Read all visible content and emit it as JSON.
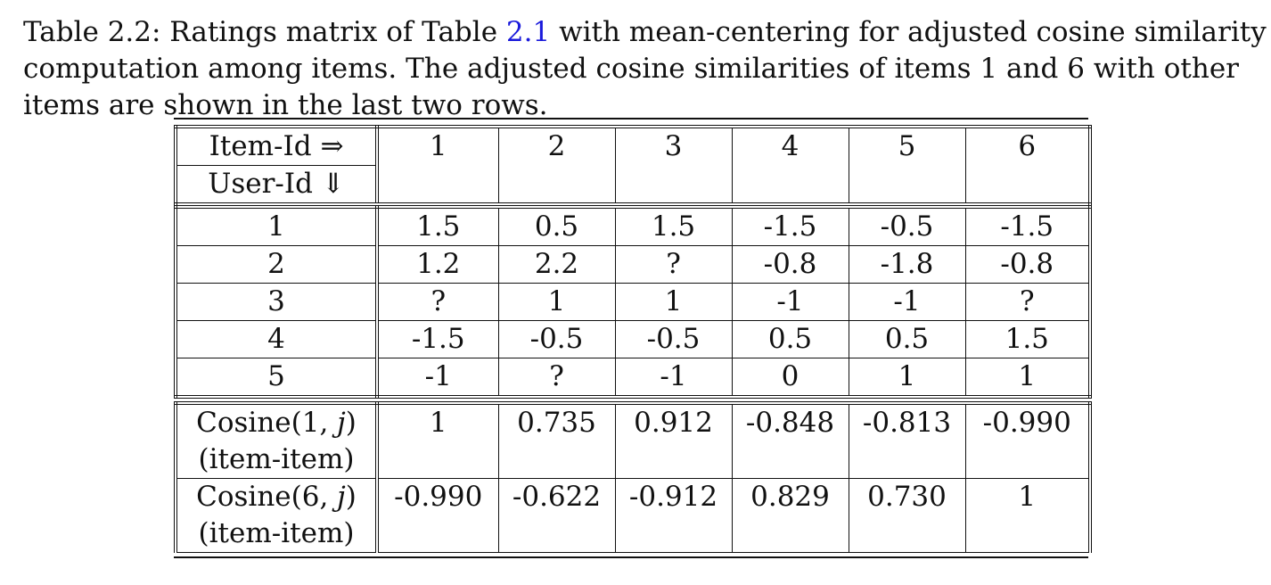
{
  "caption": {
    "line1_pre": "Table 2.2: Ratings matrix of Table ",
    "line1_ref": "2.1",
    "line1_post": " with mean-centering for adjusted cosine similarity",
    "line2": "computation among items. The adjusted cosine similarities of items 1 and 6 with other",
    "line3": "items are shown in the last two rows."
  },
  "table": {
    "header": {
      "corner_top": "Item-Id ⇒",
      "corner_bottom": "User-Id ⇓",
      "items": [
        "1",
        "2",
        "3",
        "4",
        "5",
        "6"
      ]
    },
    "rows": [
      {
        "user": "1",
        "values": [
          "1.5",
          "0.5",
          "1.5",
          "-1.5",
          "-0.5",
          "-1.5"
        ]
      },
      {
        "user": "2",
        "values": [
          "1.2",
          "2.2",
          "?",
          "-0.8",
          "-1.8",
          "-0.8"
        ]
      },
      {
        "user": "3",
        "values": [
          "?",
          "1",
          "1",
          "-1",
          "-1",
          "?"
        ]
      },
      {
        "user": "4",
        "values": [
          "-1.5",
          "-0.5",
          "-0.5",
          "0.5",
          "0.5",
          "1.5"
        ]
      },
      {
        "user": "5",
        "values": [
          "-1",
          "?",
          "-1",
          "0",
          "1",
          "1"
        ]
      }
    ],
    "cosine_rows": [
      {
        "label_pre": "Cosine(1, ",
        "label_var": "j",
        "label_post": ")",
        "sublabel": "(item-item)",
        "values": [
          "1",
          "0.735",
          "0.912",
          "-0.848",
          "-0.813",
          "-0.990"
        ]
      },
      {
        "label_pre": "Cosine(6, ",
        "label_var": "j",
        "label_post": ")",
        "sublabel": "(item-item)",
        "values": [
          "-0.990",
          "-0.622",
          "-0.912",
          "0.829",
          "0.730",
          "1"
        ]
      }
    ]
  }
}
